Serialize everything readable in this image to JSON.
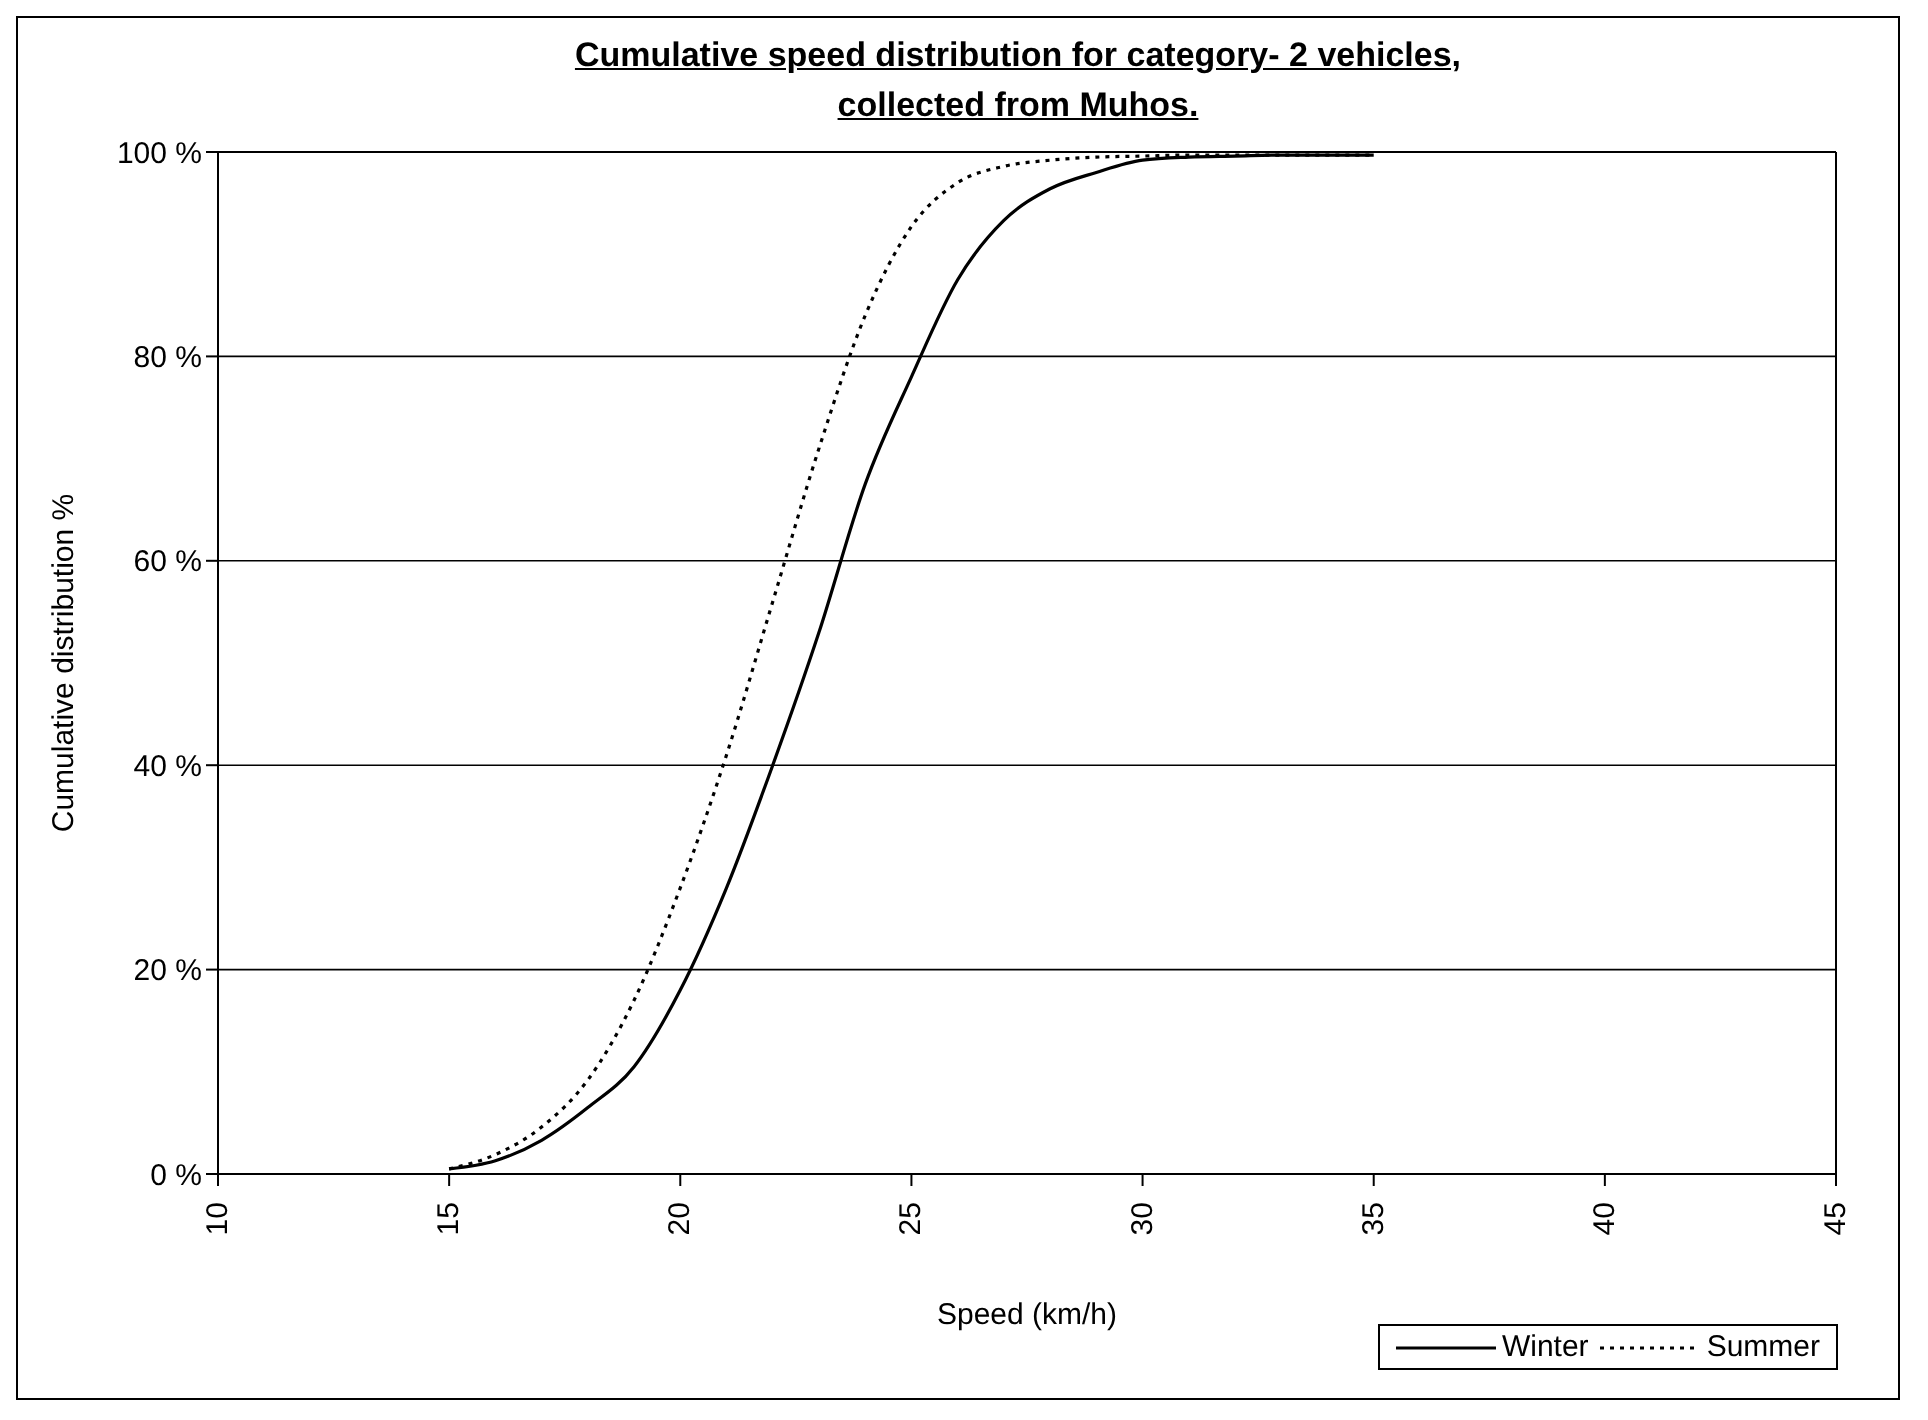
{
  "chart_data": {
    "type": "line",
    "title": "Cumulative speed distribution for category- 2 vehicles,\ncollected from Muhos.",
    "xlabel": "Speed (km/h)",
    "ylabel": "Cumulative distribution %",
    "x": [
      15,
      16,
      17,
      18,
      19,
      20,
      21,
      22,
      23,
      24,
      25,
      26,
      27,
      28,
      29,
      30,
      31,
      32,
      33,
      34,
      35
    ],
    "series": [
      {
        "name": "Winter",
        "color": "#000000",
        "line_style": "solid",
        "values": [
          0.5,
          1.3,
          3.3,
          6.5,
          10.5,
          18,
          28,
          40,
          53,
          67.5,
          78,
          87.5,
          93.3,
          96.4,
          98,
          99.2,
          99.5,
          99.6,
          99.7,
          99.7,
          99.7
        ]
      },
      {
        "name": "Summer",
        "color": "#000000",
        "line_style": "dotted",
        "values": [
          0.5,
          1.9,
          4.6,
          9.2,
          17,
          28,
          41,
          56,
          71,
          84,
          92.7,
          97,
          98.6,
          99.2,
          99.5,
          99.6,
          99.7,
          99.7,
          99.7,
          99.7,
          99.7
        ]
      }
    ],
    "xlim": [
      10,
      45
    ],
    "xticks": [
      10,
      15,
      20,
      25,
      30,
      35,
      40,
      45
    ],
    "ylim": [
      0,
      100
    ],
    "yticks": [
      {
        "value": 0,
        "label": "0 %"
      },
      {
        "value": 20,
        "label": "20 %"
      },
      {
        "value": 40,
        "label": "40 %"
      },
      {
        "value": 60,
        "label": "60 %"
      },
      {
        "value": 80,
        "label": "80 %"
      },
      {
        "value": 100,
        "label": "100 %"
      }
    ],
    "grid": "y",
    "legend": "bottom right"
  }
}
